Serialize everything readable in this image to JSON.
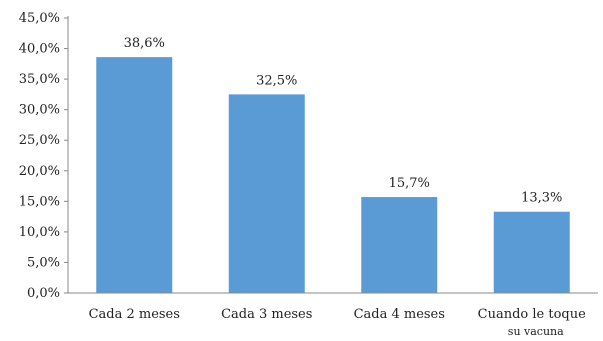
{
  "chart_data": {
    "type": "bar",
    "categories": [
      "Cada 2 meses",
      "Cada 3 meses",
      "Cada 4 meses",
      "Cuando le toque"
    ],
    "category_sublabels": [
      "",
      "",
      "",
      "su vacuna"
    ],
    "values": [
      38.6,
      32.5,
      15.7,
      13.3
    ],
    "data_labels": [
      "38,6%",
      "32,5%",
      "15,7%",
      "13,3%"
    ],
    "ylim": [
      0,
      45
    ],
    "yticks": [
      0,
      5,
      10,
      15,
      20,
      25,
      30,
      35,
      40,
      45
    ],
    "ytick_labels": [
      "0,0%",
      "5,0%",
      "10,0%",
      "15,0%",
      "20,0%",
      "25,0%",
      "30,0%",
      "35,0%",
      "40,0%",
      "45,0%"
    ],
    "bar_color": "#5b9bd5",
    "axis_color": "#888888",
    "grid": false,
    "legend": "none"
  }
}
